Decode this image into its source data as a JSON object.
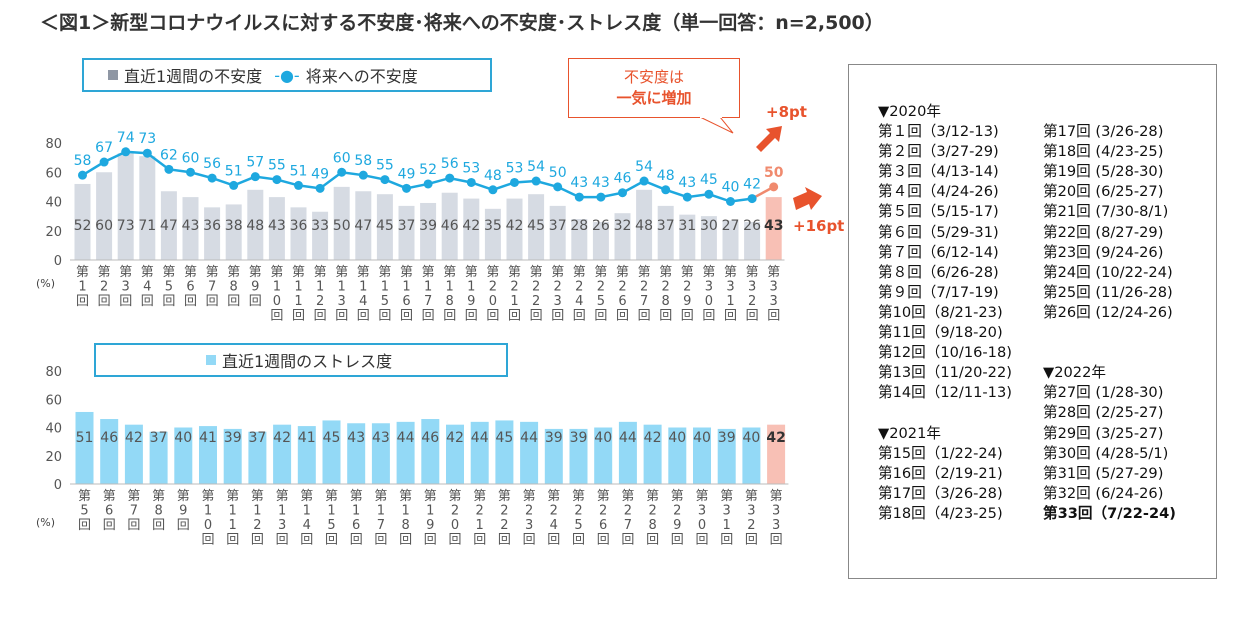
{
  "title": "＜図1＞新型コロナウイルスに対する不安度･将来への不安度･ストレス度（単一回答：n=2,500）",
  "colors": {
    "grey_bar": "#d6dbe3",
    "highlight_bar": "#f8c0b5",
    "line": "#1ea8df",
    "line_last": "#f08a6e",
    "stress_bar": "#93d9f6",
    "arrow": "#e8532d",
    "legend_border": "#2ea6d6"
  },
  "unit_label": "(%)",
  "callout": {
    "line1": "不安度は",
    "line2": "一気に増加"
  },
  "arrows": {
    "up_label": "+8pt",
    "down_label": "+16pt"
  },
  "legend1": {
    "bar_label": "直近1週間の不安度",
    "line_marker": "-●-",
    "line_label": "将来への不安度"
  },
  "legend2": {
    "bar_label": "直近1週間のストレス度"
  },
  "chart_data": [
    {
      "type": "bar",
      "title": "直近1週間の不安度 / 将来への不安度",
      "categories": [
        "第1回",
        "第2回",
        "第3回",
        "第4回",
        "第5回",
        "第6回",
        "第7回",
        "第8回",
        "第9回",
        "第10回",
        "第11回",
        "第12回",
        "第13回",
        "第14回",
        "第15回",
        "第16回",
        "第17回",
        "第18回",
        "第19回",
        "第20回",
        "第21回",
        "第22回",
        "第23回",
        "第24回",
        "第25回",
        "第26回",
        "第27回",
        "第28回",
        "第29回",
        "第30回",
        "第31回",
        "第32回",
        "第33回"
      ],
      "series": [
        {
          "name": "直近1週間の不安度",
          "type": "bar",
          "values": [
            52,
            60,
            73,
            71,
            47,
            43,
            36,
            38,
            48,
            43,
            36,
            33,
            50,
            47,
            45,
            37,
            39,
            46,
            42,
            35,
            42,
            45,
            37,
            28,
            26,
            32,
            48,
            37,
            31,
            30,
            27,
            26,
            43
          ]
        },
        {
          "name": "将来への不安度",
          "type": "line",
          "values": [
            58,
            67,
            74,
            73,
            62,
            60,
            56,
            51,
            57,
            55,
            51,
            49,
            60,
            58,
            55,
            49,
            52,
            56,
            53,
            48,
            53,
            54,
            50,
            43,
            43,
            46,
            54,
            48,
            43,
            45,
            40,
            42,
            50
          ]
        }
      ],
      "ylim": [
        0,
        80
      ],
      "yticks": [
        0,
        20,
        40,
        60,
        80
      ],
      "ylabel": "(%)"
    },
    {
      "type": "bar",
      "title": "直近1週間のストレス度",
      "categories": [
        "第5回",
        "第6回",
        "第7回",
        "第8回",
        "第9回",
        "第10回",
        "第11回",
        "第12回",
        "第13回",
        "第14回",
        "第15回",
        "第16回",
        "第17回",
        "第18回",
        "第19回",
        "第20回",
        "第21回",
        "第22回",
        "第23回",
        "第24回",
        "第25回",
        "第26回",
        "第27回",
        "第28回",
        "第29回",
        "第30回",
        "第31回",
        "第32回",
        "第33回"
      ],
      "series": [
        {
          "name": "直近1週間のストレス度",
          "type": "bar",
          "values": [
            51,
            46,
            42,
            37,
            40,
            41,
            39,
            37,
            42,
            41,
            45,
            43,
            43,
            44,
            46,
            42,
            44,
            45,
            44,
            39,
            39,
            40,
            44,
            42,
            40,
            40,
            39,
            40,
            42
          ]
        }
      ],
      "ylim": [
        0,
        80
      ],
      "yticks": [
        0,
        20,
        40,
        60,
        80
      ],
      "ylabel": "(%)"
    }
  ],
  "schedule": {
    "col1": [
      {
        "text": "▼2020年"
      },
      {
        "text": "第１回（3/12-13)"
      },
      {
        "text": "第２回（3/27-29)"
      },
      {
        "text": "第３回（4/13-14)"
      },
      {
        "text": "第４回（4/24-26)"
      },
      {
        "text": "第５回（5/15-17)"
      },
      {
        "text": "第６回（5/29-31)"
      },
      {
        "text": "第７回（6/12-14)"
      },
      {
        "text": "第８回（6/26-28)"
      },
      {
        "text": "第９回（7/17-19)"
      },
      {
        "text": "第10回（8/21-23)"
      },
      {
        "text": "第11回（9/18-20)"
      },
      {
        "text": "第12回（10/16-18)"
      },
      {
        "text": "第13回（11/20-22)"
      },
      {
        "text": "第14回（12/11-13)"
      },
      {
        "text": ""
      },
      {
        "text": "▼2021年"
      },
      {
        "text": "第15回（1/22-24)"
      },
      {
        "text": "第16回（2/19-21)"
      },
      {
        "text": "第17回（3/26-28)"
      },
      {
        "text": "第18回（4/23-25)"
      }
    ],
    "col2": [
      {
        "text": ""
      },
      {
        "text": "第17回 (3/26-28)"
      },
      {
        "text": "第18回 (4/23-25)"
      },
      {
        "text": "第19回 (5/28-30)"
      },
      {
        "text": "第20回 (6/25-27)"
      },
      {
        "text": "第21回 (7/30-8/1)"
      },
      {
        "text": "第22回 (8/27-29)"
      },
      {
        "text": "第23回 (9/24-26)"
      },
      {
        "text": "第24回 (10/22-24)"
      },
      {
        "text": "第25回 (11/26-28)"
      },
      {
        "text": "第26回 (12/24-26)"
      },
      {
        "text": ""
      },
      {
        "text": ""
      },
      {
        "text": "▼2022年"
      },
      {
        "text": "第27回 (1/28-30)"
      },
      {
        "text": "第28回 (2/25-27)"
      },
      {
        "text": "第29回 (3/25-27)"
      },
      {
        "text": "第30回 (4/28-5/1)"
      },
      {
        "text": "第31回 (5/27-29)"
      },
      {
        "text": "第32回 (6/24-26)"
      },
      {
        "text": "第33回（7/22-24)",
        "bold": true
      }
    ]
  }
}
